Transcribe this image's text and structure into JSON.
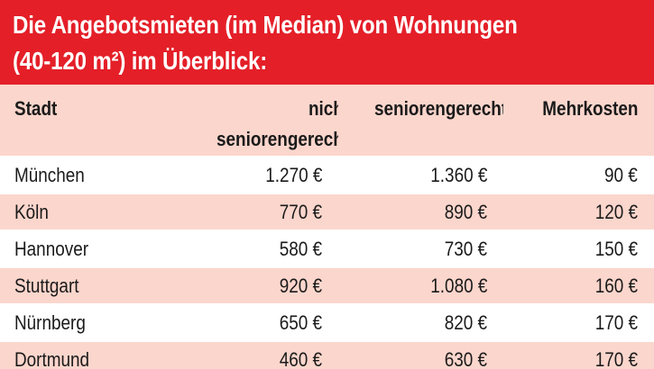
{
  "title": {
    "line1": "Die Angebotsmieten (im Median) von Wohnungen",
    "line2": "(40-120 m²) im Überblick:"
  },
  "chart_data": {
    "type": "table",
    "title": "Die Angebotsmieten (im Median) von Wohnungen (40-120 m²) im Überblick:",
    "columns": [
      "Stadt",
      "nicht seniorengerecht",
      "seniorengerecht",
      "Mehrkosten"
    ],
    "header": {
      "c0": [
        "Stadt"
      ],
      "c1": [
        "nicht",
        "seniorengerecht"
      ],
      "c2": [
        "seniorengerecht"
      ],
      "c3": [
        "Mehrkosten"
      ]
    },
    "rows": [
      {
        "city": "München",
        "nicht": "1.270 €",
        "senior": "1.360 €",
        "mehr": "90 €"
      },
      {
        "city": "Köln",
        "nicht": "770 €",
        "senior": "890 €",
        "mehr": "120 €"
      },
      {
        "city": "Hannover",
        "nicht": "580 €",
        "senior": "730 €",
        "mehr": "150 €"
      },
      {
        "city": "Stuttgart",
        "nicht": "920 €",
        "senior": "1.080 €",
        "mehr": "160 €"
      },
      {
        "city": "Nürnberg",
        "nicht": "650 €",
        "senior": "820 €",
        "mehr": "170 €"
      },
      {
        "city": "Dortmund",
        "nicht": "460 €",
        "senior": "630 €",
        "mehr": "170 €"
      }
    ],
    "values": {
      "nicht_seniorengerecht": [
        1270,
        770,
        580,
        920,
        650,
        460
      ],
      "seniorengerecht": [
        1360,
        890,
        730,
        1080,
        820,
        630
      ],
      "mehrkosten": [
        90,
        120,
        150,
        160,
        170,
        170
      ]
    },
    "unit": "€"
  },
  "colors": {
    "title_background": "#e41f28",
    "title_text": "#ffffff",
    "band_pink": "#fbd6cc",
    "band_white": "#ffffff"
  }
}
